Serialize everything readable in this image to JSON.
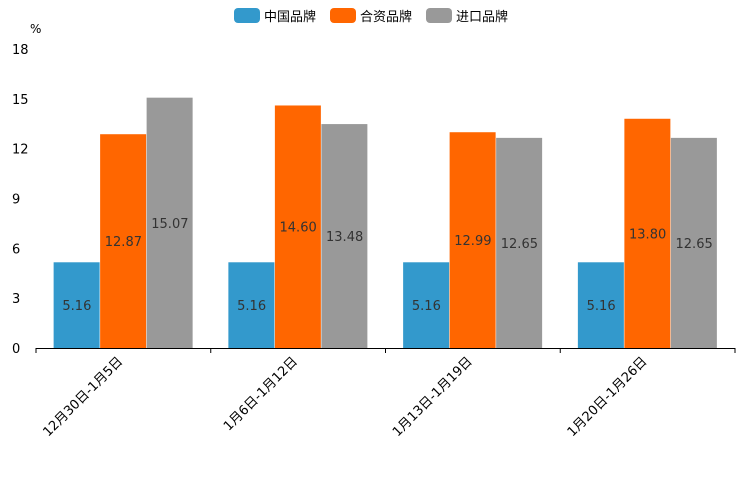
{
  "chart_data": {
    "type": "bar",
    "unit": "%",
    "categories": [
      "12月30日-1月5日",
      "1月6日-1月12日",
      "1月13日-1月19日",
      "1月20日-1月26日"
    ],
    "series": [
      {
        "name": "中国品牌",
        "color": "#3399CC",
        "values": [
          5.16,
          5.16,
          5.16,
          5.16
        ],
        "labels": [
          "5.16",
          "5.16",
          "5.16",
          "5.16"
        ]
      },
      {
        "name": "合资品牌",
        "color": "#FF6600",
        "values": [
          12.87,
          14.6,
          12.99,
          13.8
        ],
        "labels": [
          "12.87",
          "14.60",
          "12.99",
          "13.80"
        ]
      },
      {
        "name": "进口品牌",
        "color": "#999999",
        "values": [
          15.07,
          13.48,
          12.65,
          12.65
        ],
        "labels": [
          "15.07",
          "13.48",
          "12.65",
          "12.65"
        ]
      }
    ],
    "yticks": [
      0,
      3,
      6,
      9,
      12,
      15,
      18
    ],
    "ytick_labels": [
      "0",
      "3",
      "6",
      "9",
      "12",
      "15",
      "18"
    ],
    "ylim": [
      0,
      18
    ],
    "legend_position": "top-center",
    "grid": false
  }
}
